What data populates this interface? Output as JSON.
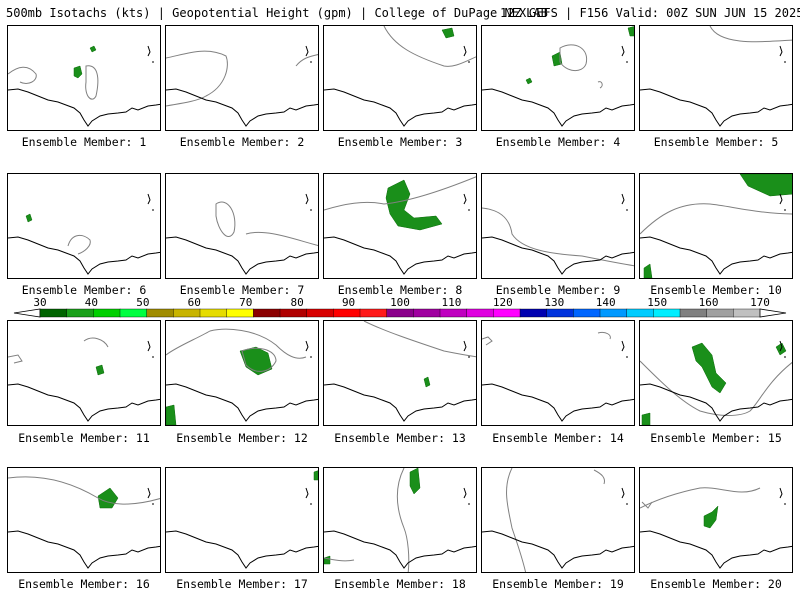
{
  "header": {
    "left_title": "500mb Isotachs (kts) | Geopotential Height (gpm) | College of DuPage NEXLAB",
    "right_title": "12Z GEFS | F156 Valid: 00Z SUN JUN 15 2025"
  },
  "colorbar": {
    "labels": [
      "30",
      "40",
      "50",
      "60",
      "70",
      "80",
      "90",
      "100",
      "110",
      "120",
      "130",
      "140",
      "150",
      "160",
      "170"
    ],
    "colors": [
      "#006400",
      "#1aa01a",
      "#00d000",
      "#00ff40",
      "#a08c00",
      "#c8b400",
      "#e6dc00",
      "#ffff00",
      "#8b0000",
      "#b00000",
      "#d80000",
      "#ff0000",
      "#ff1a1a",
      "#8b008b",
      "#a000a0",
      "#c000c0",
      "#e000e0",
      "#ff00ff",
      "#0000b0",
      "#0033dd",
      "#0066ff",
      "#0099ff",
      "#00ccff",
      "#00eeff",
      "#808080",
      "#a0a0a0",
      "#c0c0c0"
    ]
  },
  "panels": [
    {
      "label": "Ensemble Member: 1"
    },
    {
      "label": "Ensemble Member: 2"
    },
    {
      "label": "Ensemble Member: 3"
    },
    {
      "label": "Ensemble Member: 4"
    },
    {
      "label": "Ensemble Member: 5"
    },
    {
      "label": "Ensemble Member: 6"
    },
    {
      "label": "Ensemble Member: 7"
    },
    {
      "label": "Ensemble Member: 8"
    },
    {
      "label": "Ensemble Member: 9"
    },
    {
      "label": "Ensemble Member: 10"
    },
    {
      "label": "Ensemble Member: 11"
    },
    {
      "label": "Ensemble Member: 12"
    },
    {
      "label": "Ensemble Member: 13"
    },
    {
      "label": "Ensemble Member: 14"
    },
    {
      "label": "Ensemble Member: 15"
    },
    {
      "label": "Ensemble Member: 16"
    },
    {
      "label": "Ensemble Member: 17"
    },
    {
      "label": "Ensemble Member: 18"
    },
    {
      "label": "Ensemble Member: 19"
    },
    {
      "label": "Ensemble Member: 20"
    }
  ]
}
